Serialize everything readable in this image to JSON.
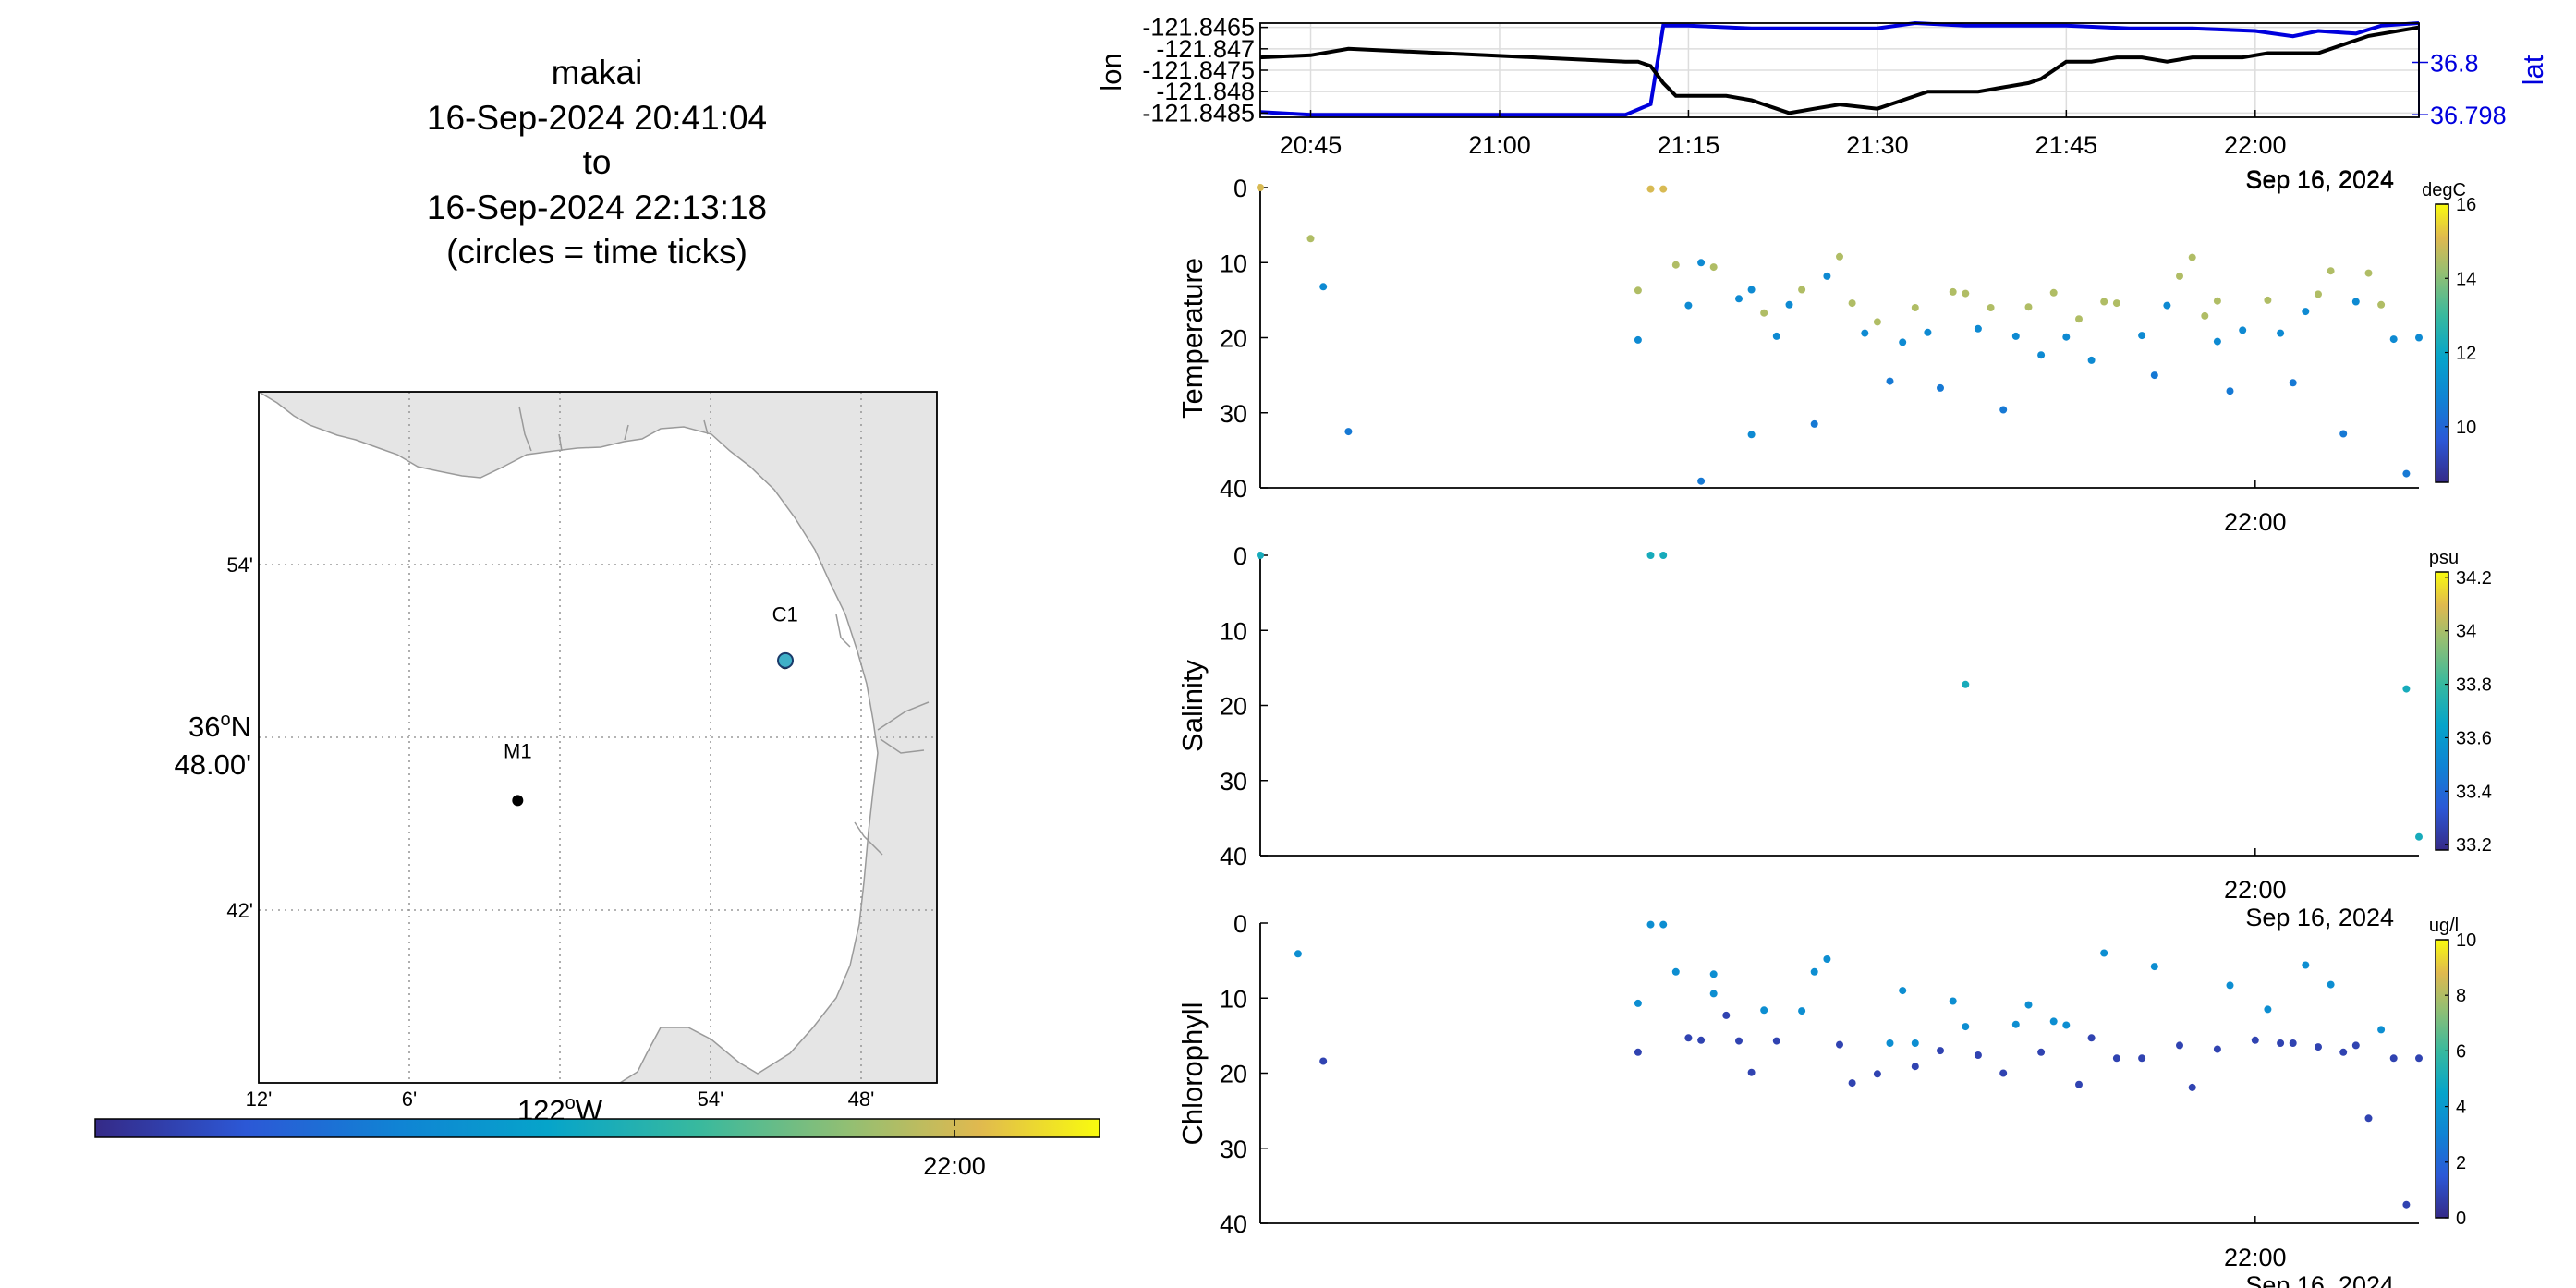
{
  "title": {
    "lines": [
      "makai",
      "16-Sep-2024 20:41:04",
      "to",
      "16-Sep-2024 22:13:18",
      "(circles = time ticks)"
    ]
  },
  "map": {
    "lat_ticks": [
      "54'",
      "42'"
    ],
    "lat_center": [
      "36",
      "o",
      "N",
      "48.00'"
    ],
    "lon_ticks": [
      "12'",
      "6'",
      "54'",
      "48'"
    ],
    "lon_center": [
      "122",
      "o",
      "W"
    ],
    "stations": [
      {
        "name": "M1",
        "lon": -122.0335,
        "lat": 36.7474
      },
      {
        "name": "C1",
        "lon": -121.8482,
        "lat": 36.7985
      }
    ],
    "vehicle_position": {
      "lon": -121.848,
      "lat": 36.799
    },
    "bounds": {
      "lon": [
        -122.213,
        -121.743
      ],
      "lat": [
        36.642,
        36.9
      ]
    },
    "colorbar_tick": "22:00",
    "colors": {
      "land": "#e5e5e5",
      "coast": "#9a9a9a",
      "grid": "#9a9a9a"
    }
  },
  "chart_data": [
    {
      "type": "line",
      "title": "",
      "xlabel": "",
      "ylabel": "lon",
      "ylabel_right": "lat",
      "x_ticks": [
        "20:45",
        "21:00",
        "21:15",
        "21:30",
        "21:45",
        "22:00"
      ],
      "x_date_label": "Sep 16, 2024",
      "x_range": [
        "20:41",
        "22:13"
      ],
      "y_ticks": [
        "-121.8465",
        "-121.847",
        "-121.8475",
        "-121.848",
        "-121.8485"
      ],
      "y_right_ticks": [
        "36.8",
        "36.798"
      ],
      "ylim": [
        -121.8486,
        -121.8464
      ],
      "ylim_right": [
        36.7979,
        36.8015
      ],
      "series": [
        {
          "name": "lon",
          "axis": "left",
          "color": "#000000",
          "x": [
            "20:41",
            "20:45",
            "20:48",
            "21:10",
            "21:11",
            "21:12",
            "21:13",
            "21:14",
            "21:15",
            "21:18",
            "21:20",
            "21:22",
            "21:23",
            "21:25",
            "21:27",
            "21:30",
            "21:32",
            "21:34",
            "21:36",
            "21:38",
            "21:40",
            "21:42",
            "21:43",
            "21:45",
            "21:47",
            "21:49",
            "21:51",
            "21:53",
            "21:55",
            "21:57",
            "21:59",
            "22:01",
            "22:03",
            "22:05",
            "22:07",
            "22:09",
            "22:11",
            "22:13"
          ],
          "values": [
            -121.8472,
            -121.84715,
            -121.847,
            -121.8473,
            -121.8473,
            -121.8474,
            -121.8478,
            -121.8481,
            -121.8481,
            -121.8481,
            -121.8482,
            -121.8484,
            -121.8485,
            -121.8484,
            -121.8483,
            -121.8484,
            -121.8482,
            -121.848,
            -121.848,
            -121.848,
            -121.8479,
            -121.8478,
            -121.8477,
            -121.8473,
            -121.8473,
            -121.8472,
            -121.8472,
            -121.8473,
            -121.8472,
            -121.8472,
            -121.8472,
            -121.8471,
            -121.8471,
            -121.8471,
            -121.8469,
            -121.8467,
            -121.8466,
            -121.8465
          ]
        },
        {
          "name": "lat",
          "axis": "right",
          "color": "#0000dd",
          "x": [
            "20:41",
            "20:45",
            "21:10",
            "21:12",
            "21:13",
            "21:15",
            "21:20",
            "21:25",
            "21:30",
            "21:33",
            "21:37",
            "21:40",
            "21:45",
            "21:50",
            "21:55",
            "22:00",
            "22:03",
            "22:05",
            "22:08",
            "22:10",
            "22:13"
          ],
          "values": [
            36.7981,
            36.798,
            36.798,
            36.7984,
            36.8014,
            36.8014,
            36.8013,
            36.8013,
            36.8013,
            36.8015,
            36.8014,
            36.8014,
            36.8014,
            36.8013,
            36.8013,
            36.8012,
            36.801,
            36.8012,
            36.8011,
            36.8014,
            36.8015
          ]
        }
      ]
    },
    {
      "type": "scatter",
      "title": "",
      "ylabel": "Temperature",
      "y_reversed": true,
      "ylim": [
        0,
        40
      ],
      "y_ticks": [
        0,
        10,
        20,
        30,
        40
      ],
      "x_ticks": [
        "22:00"
      ],
      "x_date_label": "Sep 16, 2024",
      "x_range": [
        "20:41",
        "22:13"
      ],
      "colorbar": {
        "units": "degC",
        "range": [
          8.5,
          16
        ],
        "ticks": [
          10,
          12,
          14,
          16
        ]
      },
      "points": {
        "x": [
          "20:41",
          "20:45",
          "20:46",
          "20:48",
          "21:11",
          "21:11",
          "21:12",
          "21:13",
          "21:14",
          "21:15",
          "21:16",
          "21:16",
          "21:17",
          "21:19",
          "21:20",
          "21:20",
          "21:21",
          "21:22",
          "21:23",
          "21:24",
          "21:25",
          "21:26",
          "21:27",
          "21:28",
          "21:29",
          "21:30",
          "21:31",
          "21:32",
          "21:33",
          "21:34",
          "21:35",
          "21:36",
          "21:37",
          "21:38",
          "21:39",
          "21:40",
          "21:41",
          "21:42",
          "21:43",
          "21:44",
          "21:45",
          "21:46",
          "21:47",
          "21:48",
          "21:49",
          "21:51",
          "21:52",
          "21:53",
          "21:54",
          "21:55",
          "21:56",
          "21:57",
          "21:57",
          "21:58",
          "21:59",
          "22:01",
          "22:02",
          "22:03",
          "22:04",
          "22:05",
          "22:06",
          "22:07",
          "22:08",
          "22:09",
          "22:10",
          "22:11",
          "22:12",
          "22:13"
        ],
        "depth": [
          0,
          6.8,
          13.2,
          32.5,
          20.3,
          13.7,
          0.2,
          0.2,
          10.3,
          15.7,
          39.1,
          10.0,
          10.6,
          14.8,
          13.6,
          32.9,
          16.7,
          19.8,
          15.6,
          13.6,
          31.5,
          11.8,
          9.2,
          15.4,
          19.4,
          17.9,
          25.8,
          20.6,
          16.0,
          19.3,
          26.7,
          13.9,
          14.1,
          18.8,
          16.0,
          29.6,
          19.8,
          15.9,
          22.3,
          14.0,
          19.9,
          17.5,
          23.0,
          15.2,
          15.4,
          19.7,
          25.0,
          15.7,
          11.8,
          9.3,
          17.1,
          20.5,
          15.1,
          27.1,
          19.0,
          15.0,
          19.4,
          26.0,
          16.5,
          14.2,
          11.1,
          32.8,
          15.2,
          11.4,
          15.6,
          20.2,
          38.1,
          20.0
        ],
        "color_value": [
          15,
          14.5,
          11,
          10.5,
          11,
          14.5,
          15,
          15,
          14.5,
          11,
          10.5,
          11,
          14.5,
          11,
          11,
          11,
          14.5,
          11,
          11,
          14.5,
          10.5,
          11,
          14.5,
          14.5,
          11,
          14.5,
          10.5,
          11,
          14.5,
          11,
          10.5,
          14.5,
          14.5,
          11,
          14.5,
          10.5,
          11,
          14.5,
          11,
          14.5,
          11,
          14.5,
          11,
          14.5,
          14.5,
          11,
          10.5,
          11,
          14.5,
          14.5,
          14.5,
          11,
          14.5,
          10.5,
          11,
          14.5,
          11,
          10.5,
          11,
          14.5,
          14.5,
          10.5,
          11,
          14.5,
          14.5,
          11,
          10.5,
          11
        ]
      }
    },
    {
      "type": "scatter",
      "title": "",
      "ylabel": "Salinity",
      "y_reversed": true,
      "ylim": [
        0,
        40
      ],
      "y_ticks": [
        0,
        10,
        20,
        30,
        40
      ],
      "x_ticks": [
        "22:00"
      ],
      "x_date_label": "Sep 16, 2024",
      "x_range": [
        "20:41",
        "22:13"
      ],
      "colorbar": {
        "units": "psu",
        "range": [
          33.18,
          34.22
        ],
        "ticks": [
          33.2,
          33.4,
          33.6,
          33.8,
          34,
          34.2
        ]
      },
      "points": {
        "x": [
          "20:41",
          "21:12",
          "21:13",
          "21:37",
          "22:12",
          "22:13"
        ],
        "depth": [
          0,
          0,
          0,
          17.2,
          17.8,
          37.5
        ],
        "color_value": [
          33.7,
          33.7,
          33.7,
          33.7,
          33.7,
          33.7
        ]
      }
    },
    {
      "type": "scatter",
      "title": "",
      "ylabel": "Chlorophyll",
      "y_reversed": true,
      "ylim": [
        0,
        40
      ],
      "y_ticks": [
        0,
        10,
        20,
        30,
        40
      ],
      "x_ticks": [
        "22:00"
      ],
      "x_date_label": "Sep 16, 2024",
      "x_range": [
        "20:41",
        "22:13"
      ],
      "colorbar": {
        "units": "ug/l",
        "range": [
          0,
          10
        ],
        "ticks": [
          0,
          2,
          4,
          6,
          8,
          10
        ]
      },
      "points": {
        "x": [
          "20:44",
          "20:46",
          "21:11",
          "21:11",
          "21:12",
          "21:13",
          "21:14",
          "21:15",
          "21:16",
          "21:17",
          "21:17",
          "21:18",
          "21:19",
          "21:20",
          "21:21",
          "21:22",
          "21:24",
          "21:25",
          "21:26",
          "21:27",
          "21:28",
          "21:30",
          "21:31",
          "21:32",
          "21:33",
          "21:33",
          "21:35",
          "21:36",
          "21:37",
          "21:38",
          "21:40",
          "21:41",
          "21:42",
          "21:43",
          "21:44",
          "21:45",
          "21:46",
          "21:47",
          "21:48",
          "21:49",
          "21:51",
          "21:52",
          "21:54",
          "21:55",
          "21:57",
          "21:58",
          "22:00",
          "22:01",
          "22:02",
          "22:03",
          "22:04",
          "22:05",
          "22:06",
          "22:07",
          "22:08",
          "22:09",
          "22:10",
          "22:11",
          "22:12",
          "22:13"
        ],
        "depth": [
          4.1,
          18.4,
          17.2,
          10.7,
          0.2,
          0.2,
          6.5,
          15.3,
          15.6,
          6.8,
          9.4,
          12.3,
          15.7,
          19.9,
          11.6,
          15.7,
          11.7,
          6.5,
          4.8,
          16.2,
          21.3,
          20.1,
          16.0,
          9.0,
          16.0,
          19.1,
          17.0,
          10.4,
          13.8,
          17.6,
          20.0,
          13.5,
          10.9,
          17.2,
          13.1,
          13.6,
          21.5,
          15.3,
          4.0,
          18.0,
          18.0,
          5.8,
          16.3,
          21.9,
          16.8,
          8.3,
          15.6,
          11.5,
          16.0,
          16.0,
          5.6,
          16.5,
          8.2,
          17.2,
          16.3,
          26.0,
          14.2,
          18.0,
          37.5,
          18.0
        ],
        "color_value": [
          3.5,
          0.8,
          0.8,
          3.5,
          3.5,
          3.5,
          3.5,
          0.8,
          0.8,
          3.5,
          3.5,
          0.8,
          0.8,
          0.8,
          3.5,
          0.8,
          3.5,
          3.5,
          3.5,
          0.8,
          0.8,
          0.8,
          3.5,
          3.5,
          3.5,
          0.8,
          0.8,
          3.5,
          3.5,
          0.8,
          0.8,
          3.5,
          3.5,
          0.8,
          3.5,
          3.5,
          0.8,
          0.8,
          3.5,
          0.8,
          0.8,
          3.5,
          0.8,
          0.8,
          0.8,
          3.5,
          0.8,
          3.5,
          0.8,
          0.8,
          3.5,
          0.8,
          3.5,
          0.8,
          0.8,
          0.8,
          3.5,
          0.8,
          0.8,
          0.8
        ]
      }
    }
  ]
}
